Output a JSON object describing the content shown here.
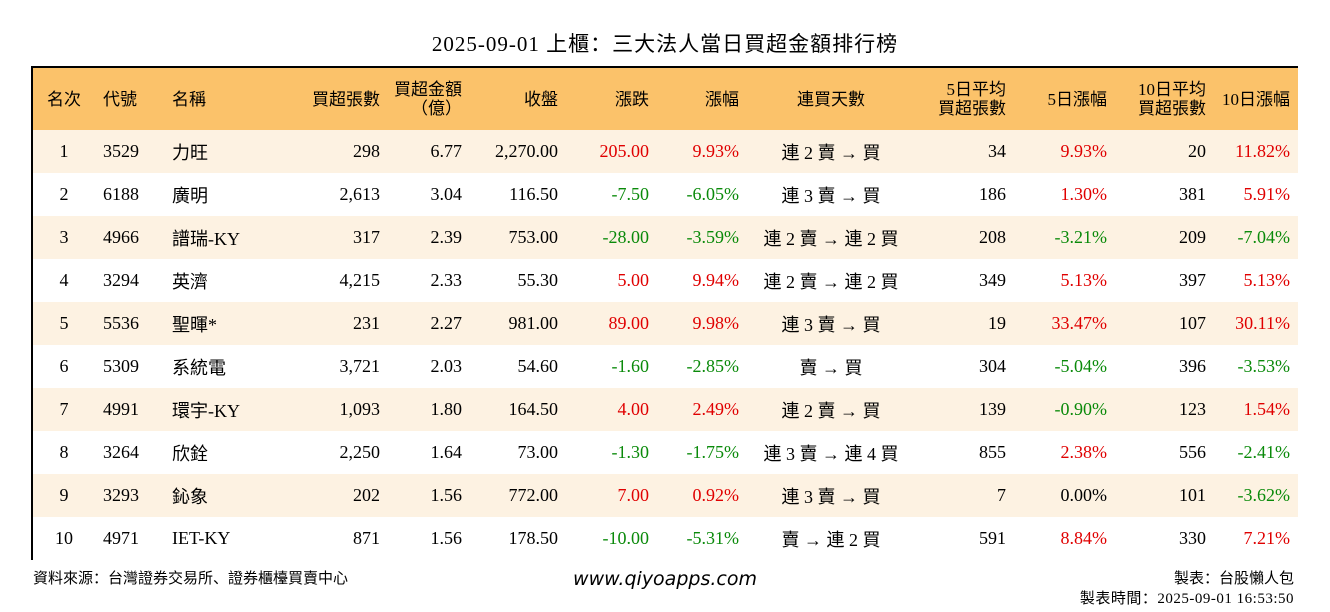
{
  "title": "2025-09-01 上櫃：三大法人當日買超金額排行榜",
  "columns": {
    "rank": "名次",
    "code": "代號",
    "name": "名稱",
    "buy_lots": "買超張數",
    "buy_amount_1": "買超金額",
    "buy_amount_2": "（億）",
    "close": "收盤",
    "change": "漲跌",
    "pct": "漲幅",
    "streak": "連買天數",
    "avg5_1": "5日平均",
    "avg5_2": "買超張數",
    "pct5": "5日漲幅",
    "avg10_1": "10日平均",
    "avg10_2": "買超張數",
    "pct10": "10日漲幅"
  },
  "rows": [
    {
      "rank": "1",
      "code": "3529",
      "name": "力旺",
      "buy_lots": "298",
      "buy_amount": "6.77",
      "close": "2,270.00",
      "change": "205.00",
      "change_color": "red",
      "pct": "9.93%",
      "pct_color": "red",
      "streak": "連 2 賣 → 買",
      "avg5": "34",
      "pct5": "9.93%",
      "pct5_color": "red",
      "avg10": "20",
      "pct10": "11.82%",
      "pct10_color": "red"
    },
    {
      "rank": "2",
      "code": "6188",
      "name": "廣明",
      "buy_lots": "2,613",
      "buy_amount": "3.04",
      "close": "116.50",
      "change": "-7.50",
      "change_color": "green",
      "pct": "-6.05%",
      "pct_color": "green",
      "streak": "連 3 賣 → 買",
      "avg5": "186",
      "pct5": "1.30%",
      "pct5_color": "red",
      "avg10": "381",
      "pct10": "5.91%",
      "pct10_color": "red"
    },
    {
      "rank": "3",
      "code": "4966",
      "name": "譜瑞-KY",
      "buy_lots": "317",
      "buy_amount": "2.39",
      "close": "753.00",
      "change": "-28.00",
      "change_color": "green",
      "pct": "-3.59%",
      "pct_color": "green",
      "streak": "連 2 賣 → 連 2 買",
      "avg5": "208",
      "pct5": "-3.21%",
      "pct5_color": "green",
      "avg10": "209",
      "pct10": "-7.04%",
      "pct10_color": "green"
    },
    {
      "rank": "4",
      "code": "3294",
      "name": "英濟",
      "buy_lots": "4,215",
      "buy_amount": "2.33",
      "close": "55.30",
      "change": "5.00",
      "change_color": "red",
      "pct": "9.94%",
      "pct_color": "red",
      "streak": "連 2 賣 → 連 2 買",
      "avg5": "349",
      "pct5": "5.13%",
      "pct5_color": "red",
      "avg10": "397",
      "pct10": "5.13%",
      "pct10_color": "red"
    },
    {
      "rank": "5",
      "code": "5536",
      "name": "聖暉*",
      "buy_lots": "231",
      "buy_amount": "2.27",
      "close": "981.00",
      "change": "89.00",
      "change_color": "red",
      "pct": "9.98%",
      "pct_color": "red",
      "streak": "連 3 賣 → 買",
      "avg5": "19",
      "pct5": "33.47%",
      "pct5_color": "red",
      "avg10": "107",
      "pct10": "30.11%",
      "pct10_color": "red"
    },
    {
      "rank": "6",
      "code": "5309",
      "name": "系統電",
      "buy_lots": "3,721",
      "buy_amount": "2.03",
      "close": "54.60",
      "change": "-1.60",
      "change_color": "green",
      "pct": "-2.85%",
      "pct_color": "green",
      "streak": "賣 → 買",
      "avg5": "304",
      "pct5": "-5.04%",
      "pct5_color": "green",
      "avg10": "396",
      "pct10": "-3.53%",
      "pct10_color": "green"
    },
    {
      "rank": "7",
      "code": "4991",
      "name": "環宇-KY",
      "buy_lots": "1,093",
      "buy_amount": "1.80",
      "close": "164.50",
      "change": "4.00",
      "change_color": "red",
      "pct": "2.49%",
      "pct_color": "red",
      "streak": "連 2 賣 → 買",
      "avg5": "139",
      "pct5": "-0.90%",
      "pct5_color": "green",
      "avg10": "123",
      "pct10": "1.54%",
      "pct10_color": "red"
    },
    {
      "rank": "8",
      "code": "3264",
      "name": "欣銓",
      "buy_lots": "2,250",
      "buy_amount": "1.64",
      "close": "73.00",
      "change": "-1.30",
      "change_color": "green",
      "pct": "-1.75%",
      "pct_color": "green",
      "streak": "連 3 賣 → 連 4 買",
      "avg5": "855",
      "pct5": "2.38%",
      "pct5_color": "red",
      "avg10": "556",
      "pct10": "-2.41%",
      "pct10_color": "green"
    },
    {
      "rank": "9",
      "code": "3293",
      "name": "鈊象",
      "buy_lots": "202",
      "buy_amount": "1.56",
      "close": "772.00",
      "change": "7.00",
      "change_color": "red",
      "pct": "0.92%",
      "pct_color": "red",
      "streak": "連 3 賣 → 買",
      "avg5": "7",
      "pct5": "0.00%",
      "pct5_color": "black",
      "avg10": "101",
      "pct10": "-3.62%",
      "pct10_color": "green"
    },
    {
      "rank": "10",
      "code": "4971",
      "name": "IET-KY",
      "buy_lots": "871",
      "buy_amount": "1.56",
      "close": "178.50",
      "change": "-10.00",
      "change_color": "green",
      "pct": "-5.31%",
      "pct_color": "green",
      "streak": "賣 → 連 2 買",
      "avg5": "591",
      "pct5": "8.84%",
      "pct5_color": "red",
      "avg10": "330",
      "pct10": "7.21%",
      "pct10_color": "red"
    }
  ],
  "footer": {
    "source": "資料來源：台灣證券交易所、證券櫃檯買賣中心",
    "website": "www.qiyoapps.com",
    "author": "製表：台股懶人包",
    "time": "製表時間：2025-09-01 16:53:50"
  },
  "colors": {
    "header_bg": "#fbc26a",
    "stripe_bg": "#fdf2e2",
    "up": "#e00000",
    "down": "#0a8a0a"
  }
}
